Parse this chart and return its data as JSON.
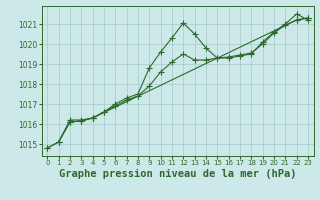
{
  "line1_x": [
    0,
    1,
    2,
    3,
    4,
    5,
    6,
    7,
    8,
    9,
    10,
    11,
    12,
    13,
    14,
    15,
    16,
    17,
    18,
    19,
    20,
    21,
    22,
    23
  ],
  "line1_y": [
    1014.8,
    1015.1,
    1016.2,
    1016.2,
    1016.3,
    1016.6,
    1017.0,
    1017.3,
    1017.5,
    1018.8,
    1019.6,
    1020.3,
    1021.05,
    1020.5,
    1019.8,
    1019.3,
    1019.3,
    1019.4,
    1019.5,
    1020.1,
    1020.6,
    1021.0,
    1021.5,
    1021.2
  ],
  "line2_x": [
    0,
    1,
    2,
    3,
    4,
    5,
    6,
    7,
    8,
    9,
    10,
    11,
    12,
    13,
    14,
    15,
    16,
    17,
    18,
    19,
    20,
    21,
    22,
    23
  ],
  "line2_y": [
    1014.8,
    1015.1,
    1016.1,
    1016.15,
    1016.3,
    1016.6,
    1016.9,
    1017.2,
    1017.4,
    1017.9,
    1018.6,
    1019.1,
    1019.5,
    1019.2,
    1019.2,
    1019.3,
    1019.35,
    1019.45,
    1019.55,
    1020.0,
    1020.55,
    1020.95,
    1021.2,
    1021.3
  ],
  "line3_x": [
    1,
    2,
    3,
    4,
    22,
    23
  ],
  "line3_y": [
    1015.1,
    1016.1,
    1016.15,
    1016.3,
    1021.2,
    1021.3
  ],
  "color": "#2d6a2d",
  "bg_color": "#cce8e8",
  "grid_color": "#aacece",
  "xlabel": "Graphe pression niveau de la mer (hPa)",
  "xlabel_fontsize": 7.5,
  "yticks": [
    1015,
    1016,
    1017,
    1018,
    1019,
    1020,
    1021
  ],
  "xticks": [
    0,
    1,
    2,
    3,
    4,
    5,
    6,
    7,
    8,
    9,
    10,
    11,
    12,
    13,
    14,
    15,
    16,
    17,
    18,
    19,
    20,
    21,
    22,
    23
  ],
  "ylim": [
    1014.4,
    1021.9
  ],
  "xlim": [
    -0.5,
    23.5
  ]
}
